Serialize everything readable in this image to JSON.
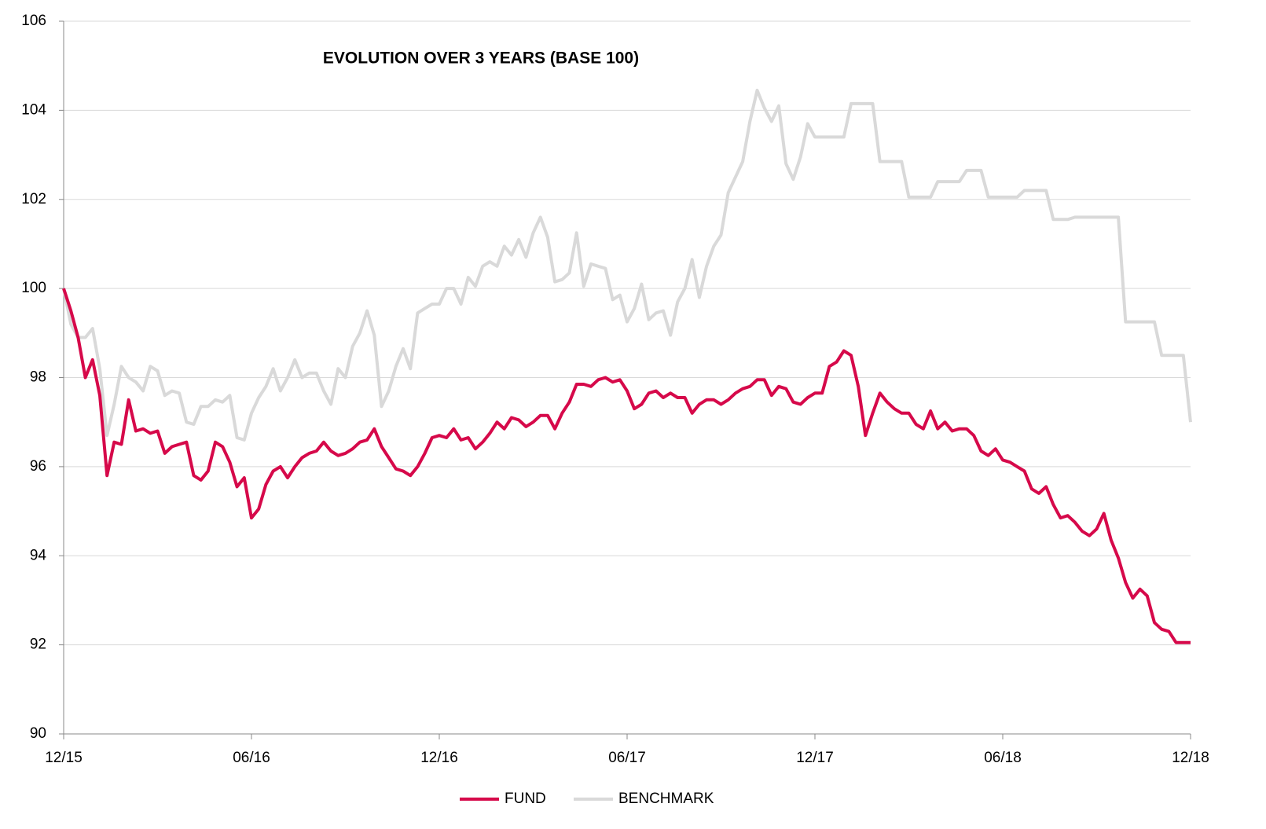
{
  "chart_data": {
    "type": "line",
    "title": "EVOLUTION OVER 3 YEARS (BASE 100)",
    "categories": [
      "12/15",
      null,
      null,
      null,
      null,
      null,
      null,
      null,
      null,
      null,
      null,
      null,
      null,
      null,
      null,
      null,
      null,
      null,
      null,
      null,
      null,
      null,
      null,
      null,
      null,
      null,
      "06/16",
      null,
      null,
      null,
      null,
      null,
      null,
      null,
      null,
      null,
      null,
      null,
      null,
      null,
      null,
      null,
      null,
      null,
      null,
      null,
      null,
      null,
      null,
      null,
      null,
      null,
      "12/16",
      null,
      null,
      null,
      null,
      null,
      null,
      null,
      null,
      null,
      null,
      null,
      null,
      null,
      null,
      null,
      null,
      null,
      null,
      null,
      null,
      null,
      null,
      null,
      null,
      null,
      "06/17",
      null,
      null,
      null,
      null,
      null,
      null,
      null,
      null,
      null,
      null,
      null,
      null,
      null,
      null,
      null,
      null,
      null,
      null,
      null,
      null,
      null,
      null,
      null,
      null,
      null,
      "12/17",
      null,
      null,
      null,
      null,
      null,
      null,
      null,
      null,
      null,
      null,
      null,
      null,
      null,
      null,
      null,
      null,
      null,
      null,
      null,
      null,
      null,
      null,
      null,
      null,
      null,
      "06/18",
      null,
      null,
      null,
      null,
      null,
      null,
      null,
      null,
      null,
      null,
      null,
      null,
      null,
      null,
      null,
      null,
      null,
      null,
      null,
      null,
      null,
      null,
      null,
      null,
      null,
      "12/18"
    ],
    "series": [
      {
        "name": "FUND",
        "color": "#d6094a",
        "values": [
          100,
          99.5,
          98.9,
          98.0,
          98.4,
          97.6,
          95.8,
          96.55,
          96.5,
          97.5,
          96.8,
          96.85,
          96.75,
          96.8,
          96.3,
          96.45,
          96.5,
          96.55,
          95.8,
          95.7,
          95.9,
          96.55,
          96.45,
          96.1,
          95.55,
          95.75,
          94.85,
          95.05,
          95.6,
          95.9,
          96.0,
          95.75,
          96.0,
          96.2,
          96.3,
          96.35,
          96.55,
          96.35,
          96.25,
          96.3,
          96.4,
          96.55,
          96.6,
          96.85,
          96.45,
          96.2,
          95.95,
          95.9,
          95.8,
          96.0,
          96.3,
          96.65,
          96.7,
          96.65,
          96.85,
          96.6,
          96.65,
          96.4,
          96.55,
          96.75,
          97.0,
          96.85,
          97.1,
          97.05,
          96.9,
          97.0,
          97.15,
          97.15,
          96.85,
          97.2,
          97.45,
          97.85,
          97.85,
          97.8,
          97.95,
          98.0,
          97.9,
          97.95,
          97.7,
          97.3,
          97.4,
          97.65,
          97.7,
          97.55,
          97.65,
          97.55,
          97.55,
          97.2,
          97.4,
          97.5,
          97.5,
          97.4,
          97.5,
          97.65,
          97.75,
          97.8,
          97.95,
          97.95,
          97.6,
          97.8,
          97.75,
          97.45,
          97.4,
          97.55,
          97.65,
          97.65,
          98.25,
          98.35,
          98.6,
          98.5,
          97.8,
          96.7,
          97.2,
          97.65,
          97.45,
          97.3,
          97.2,
          97.2,
          96.95,
          96.85,
          97.25,
          96.85,
          97.0,
          96.8,
          96.85,
          96.85,
          96.7,
          96.35,
          96.25,
          96.4,
          96.15,
          96.1,
          96.0,
          95.9,
          95.5,
          95.4,
          95.55,
          95.15,
          94.85,
          94.9,
          94.75,
          94.55,
          94.45,
          94.6,
          94.95,
          94.35,
          93.95,
          93.4,
          93.05,
          93.25,
          93.1,
          92.5,
          92.35,
          92.3,
          92.05,
          92.05,
          92.05
        ]
      },
      {
        "name": "BENCHMARK",
        "color": "#d9d9d9",
        "values": [
          100,
          99.2,
          98.9,
          98.9,
          99.1,
          98.2,
          96.7,
          97.4,
          98.25,
          98.0,
          97.9,
          97.7,
          98.25,
          98.15,
          97.6,
          97.7,
          97.65,
          97.0,
          96.95,
          97.35,
          97.35,
          97.5,
          97.45,
          97.6,
          96.65,
          96.6,
          97.2,
          97.55,
          97.8,
          98.2,
          97.7,
          98.0,
          98.4,
          98.0,
          98.1,
          98.1,
          97.7,
          97.4,
          98.2,
          98.0,
          98.7,
          99.0,
          99.5,
          98.95,
          97.35,
          97.7,
          98.25,
          98.65,
          98.2,
          99.45,
          99.55,
          99.65,
          99.65,
          100.0,
          100.0,
          99.65,
          100.25,
          100.05,
          100.5,
          100.6,
          100.5,
          100.95,
          100.75,
          101.1,
          100.7,
          101.25,
          101.6,
          101.15,
          100.15,
          100.2,
          100.35,
          101.25,
          100.05,
          100.55,
          100.5,
          100.45,
          99.75,
          99.85,
          99.25,
          99.55,
          100.1,
          99.3,
          99.45,
          99.5,
          98.95,
          99.7,
          100.0,
          100.65,
          99.8,
          100.5,
          100.95,
          101.2,
          102.15,
          102.5,
          102.85,
          103.75,
          104.45,
          104.05,
          103.75,
          104.1,
          102.8,
          102.45,
          102.95,
          103.7,
          103.4,
          103.4,
          103.4,
          103.4,
          103.4,
          104.15,
          104.15,
          104.15,
          104.15,
          102.85,
          102.85,
          102.85,
          102.85,
          102.05,
          102.05,
          102.05,
          102.05,
          102.4,
          102.4,
          102.4,
          102.4,
          102.65,
          102.65,
          102.65,
          102.05,
          102.05,
          102.05,
          102.05,
          102.05,
          102.2,
          102.2,
          102.2,
          102.2,
          101.55,
          101.55,
          101.55,
          101.6,
          101.6,
          101.6,
          101.6,
          101.6,
          101.6,
          101.6,
          99.25,
          99.25,
          99.25,
          99.25,
          99.25,
          98.5,
          98.5,
          98.5,
          98.5,
          97.0
        ]
      }
    ],
    "ylim": [
      90,
      106
    ],
    "yticks": [
      90,
      92,
      94,
      96,
      98,
      100,
      102,
      104,
      106
    ],
    "grid": true
  }
}
